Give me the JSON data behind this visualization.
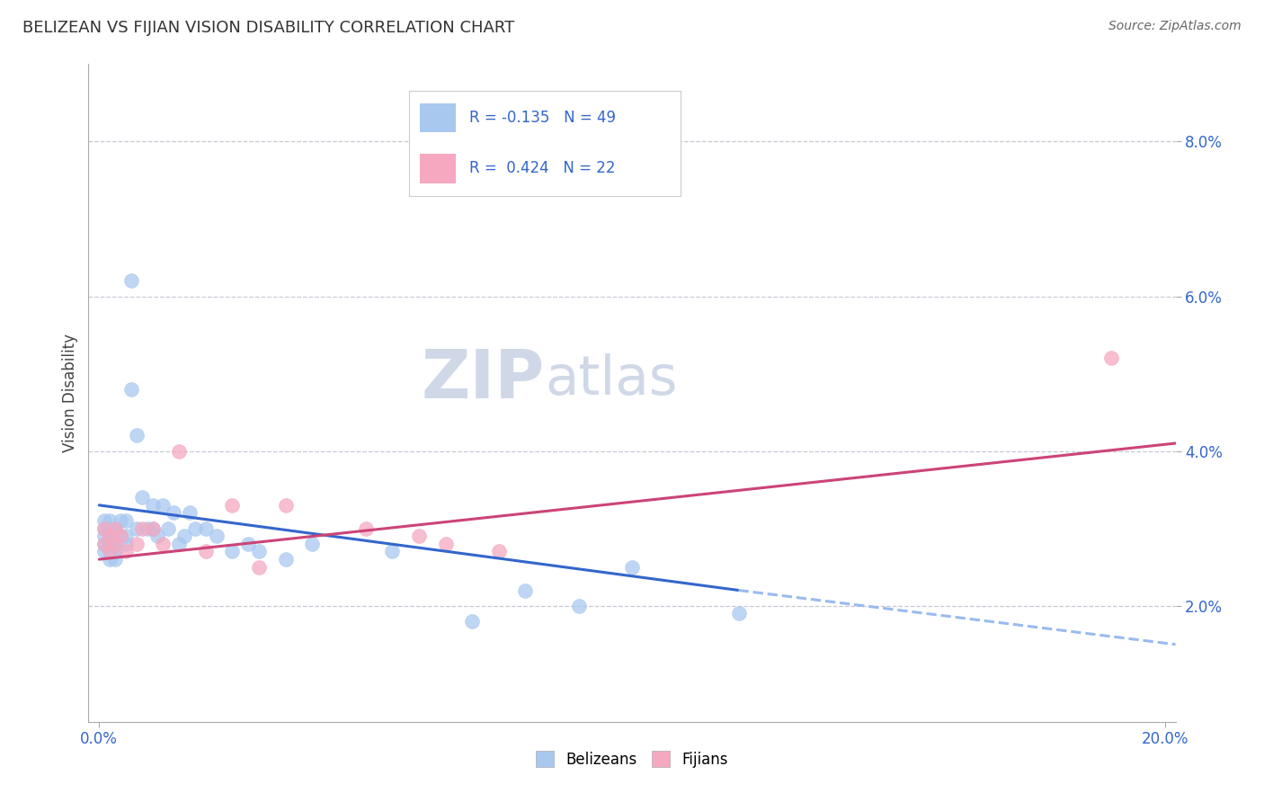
{
  "title": "BELIZEAN VS FIJIAN VISION DISABILITY CORRELATION CHART",
  "source": "Source: ZipAtlas.com",
  "ylabel": "Vision Disability",
  "legend_labels": [
    "Belizeans",
    "Fijians"
  ],
  "r_belizean": -0.135,
  "n_belizean": 49,
  "r_fijian": 0.424,
  "n_fijian": 22,
  "xlim": [
    -0.002,
    0.202
  ],
  "ylim": [
    0.005,
    0.09
  ],
  "yticks": [
    0.02,
    0.04,
    0.06,
    0.08
  ],
  "ytick_labels": [
    "2.0%",
    "4.0%",
    "6.0%",
    "8.0%"
  ],
  "xtick_left_label": "0.0%",
  "xtick_right_label": "20.0%",
  "color_belizean": "#A8C8F0",
  "color_fijian": "#F5A8C0",
  "line_color_belizean": "#3366CC",
  "line_color_fijian": "#CC4477",
  "line_color_dashed": "#99BBEE",
  "background_color": "#ffffff",
  "grid_color": "#bbbbcc",
  "watermark_color": "#d0d8e8",
  "belizean_x": [
    0.001,
    0.001,
    0.001,
    0.001,
    0.001,
    0.002,
    0.002,
    0.002,
    0.002,
    0.002,
    0.002,
    0.003,
    0.003,
    0.003,
    0.003,
    0.004,
    0.004,
    0.005,
    0.005,
    0.005,
    0.006,
    0.006,
    0.007,
    0.007,
    0.008,
    0.009,
    0.01,
    0.01,
    0.011,
    0.012,
    0.013,
    0.014,
    0.015,
    0.016,
    0.017,
    0.018,
    0.02,
    0.022,
    0.025,
    0.028,
    0.03,
    0.035,
    0.04,
    0.055,
    0.07,
    0.08,
    0.09,
    0.1,
    0.12
  ],
  "belizean_y": [
    0.031,
    0.028,
    0.03,
    0.029,
    0.027,
    0.029,
    0.03,
    0.027,
    0.026,
    0.028,
    0.031,
    0.03,
    0.028,
    0.027,
    0.026,
    0.031,
    0.029,
    0.031,
    0.029,
    0.028,
    0.062,
    0.048,
    0.042,
    0.03,
    0.034,
    0.03,
    0.033,
    0.03,
    0.029,
    0.033,
    0.03,
    0.032,
    0.028,
    0.029,
    0.032,
    0.03,
    0.03,
    0.029,
    0.027,
    0.028,
    0.027,
    0.026,
    0.028,
    0.027,
    0.018,
    0.022,
    0.02,
    0.025,
    0.019
  ],
  "fijian_x": [
    0.001,
    0.001,
    0.002,
    0.002,
    0.003,
    0.003,
    0.004,
    0.005,
    0.007,
    0.008,
    0.01,
    0.012,
    0.015,
    0.02,
    0.025,
    0.03,
    0.035,
    0.05,
    0.06,
    0.065,
    0.075,
    0.19
  ],
  "fijian_y": [
    0.028,
    0.03,
    0.027,
    0.029,
    0.028,
    0.03,
    0.029,
    0.027,
    0.028,
    0.03,
    0.03,
    0.028,
    0.04,
    0.027,
    0.033,
    0.025,
    0.033,
    0.03,
    0.029,
    0.028,
    0.027,
    0.052
  ],
  "bel_line_start_x": 0.0,
  "bel_line_start_y": 0.033,
  "bel_line_solid_end_x": 0.12,
  "bel_line_solid_end_y": 0.022,
  "bel_line_dash_end_x": 0.202,
  "bel_line_dash_end_y": 0.015,
  "fij_line_start_x": 0.0,
  "fij_line_start_y": 0.026,
  "fij_line_end_x": 0.202,
  "fij_line_end_y": 0.041
}
